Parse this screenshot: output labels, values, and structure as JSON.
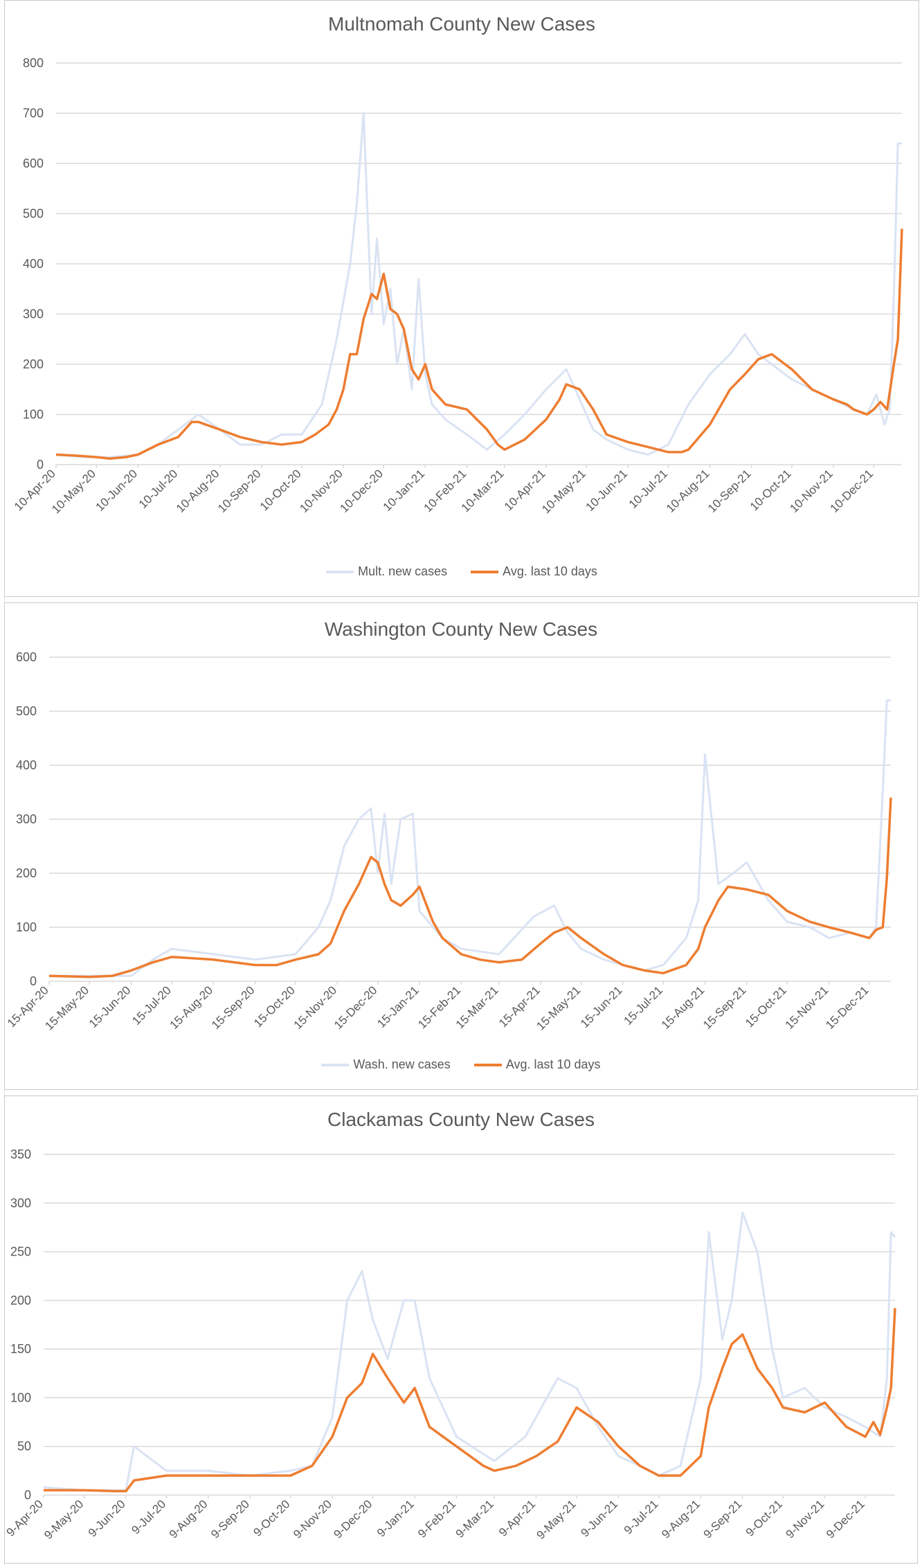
{
  "colors": {
    "daily": "#dae3f3",
    "avg": "#ed7d31",
    "grid": "#d9d9d9",
    "axis_text": "#595959"
  },
  "chart_data": [
    {
      "type": "line",
      "title": "Multnomah County New Cases",
      "ylim": [
        0,
        800
      ],
      "yticks": [
        0,
        100,
        200,
        300,
        400,
        500,
        600,
        700,
        800
      ],
      "x_range": [
        "2020-04-10",
        "2021-12-31"
      ],
      "xtick_labels": [
        "10-Apr-20",
        "10-May-20",
        "10-Jun-20",
        "10-Jul-20",
        "10-Aug-20",
        "10-Sep-20",
        "10-Oct-20",
        "10-Nov-20",
        "10-Dec-20",
        "10-Jan-21",
        "10-Feb-21",
        "10-Mar-21",
        "10-Apr-21",
        "10-May-21",
        "10-Jun-21",
        "10-Jul-21",
        "10-Aug-21",
        "10-Sep-21",
        "10-Oct-21",
        "10-Nov-21",
        "10-Dec-21"
      ],
      "xtick_dates": [
        "2020-04-10",
        "2020-05-10",
        "2020-06-10",
        "2020-07-10",
        "2020-08-10",
        "2020-09-10",
        "2020-10-10",
        "2020-11-10",
        "2020-12-10",
        "2021-01-10",
        "2021-02-10",
        "2021-03-10",
        "2021-04-10",
        "2021-05-10",
        "2021-06-10",
        "2021-07-10",
        "2021-08-10",
        "2021-09-10",
        "2021-10-10",
        "2021-11-10",
        "2021-12-10"
      ],
      "grid": true,
      "legend": "bottom",
      "series": [
        {
          "name": "Mult. new cases",
          "color": "#dae3f3",
          "x": [
            "2020-04-10",
            "2020-05-01",
            "2020-05-20",
            "2020-06-10",
            "2020-06-25",
            "2020-07-10",
            "2020-07-25",
            "2020-08-10",
            "2020-08-25",
            "2020-09-10",
            "2020-09-25",
            "2020-10-10",
            "2020-10-25",
            "2020-11-05",
            "2020-11-15",
            "2020-11-20",
            "2020-11-25",
            "2020-12-01",
            "2020-12-05",
            "2020-12-10",
            "2020-12-15",
            "2020-12-20",
            "2020-12-25",
            "2020-12-31",
            "2021-01-05",
            "2021-01-10",
            "2021-01-15",
            "2021-01-25",
            "2021-02-10",
            "2021-02-25",
            "2021-03-10",
            "2021-03-25",
            "2021-04-10",
            "2021-04-25",
            "2021-05-05",
            "2021-05-15",
            "2021-05-25",
            "2021-06-10",
            "2021-06-25",
            "2021-07-10",
            "2021-07-25",
            "2021-08-10",
            "2021-08-25",
            "2021-09-05",
            "2021-09-15",
            "2021-09-25",
            "2021-10-10",
            "2021-10-25",
            "2021-11-10",
            "2021-11-25",
            "2021-12-05",
            "2021-12-12",
            "2021-12-18",
            "2021-12-22",
            "2021-12-25",
            "2021-12-28",
            "2021-12-31"
          ],
          "values": [
            20,
            15,
            15,
            20,
            40,
            70,
            100,
            70,
            40,
            40,
            60,
            60,
            120,
            250,
            400,
            520,
            700,
            300,
            450,
            280,
            350,
            200,
            270,
            150,
            370,
            180,
            120,
            90,
            60,
            30,
            60,
            100,
            150,
            190,
            130,
            70,
            50,
            30,
            20,
            40,
            120,
            180,
            220,
            260,
            220,
            200,
            170,
            150,
            130,
            110,
            100,
            140,
            80,
            110,
            340,
            640,
            640
          ]
        },
        {
          "name": "Avg. last 10 days",
          "color": "#ed7d31",
          "x": [
            "2020-04-10",
            "2020-04-25",
            "2020-05-10",
            "2020-05-20",
            "2020-06-01",
            "2020-06-10",
            "2020-06-25",
            "2020-07-10",
            "2020-07-20",
            "2020-07-25",
            "2020-08-10",
            "2020-08-25",
            "2020-09-10",
            "2020-09-25",
            "2020-10-10",
            "2020-10-20",
            "2020-10-30",
            "2020-11-05",
            "2020-11-10",
            "2020-11-15",
            "2020-11-20",
            "2020-11-25",
            "2020-12-01",
            "2020-12-05",
            "2020-12-10",
            "2020-12-15",
            "2020-12-20",
            "2020-12-25",
            "2020-12-31",
            "2021-01-05",
            "2021-01-10",
            "2021-01-15",
            "2021-01-25",
            "2021-02-10",
            "2021-02-25",
            "2021-03-05",
            "2021-03-10",
            "2021-03-25",
            "2021-04-10",
            "2021-04-20",
            "2021-04-25",
            "2021-05-05",
            "2021-05-15",
            "2021-05-25",
            "2021-06-10",
            "2021-06-25",
            "2021-07-10",
            "2021-07-20",
            "2021-07-25",
            "2021-08-10",
            "2021-08-25",
            "2021-09-05",
            "2021-09-15",
            "2021-09-25",
            "2021-10-05",
            "2021-10-10",
            "2021-10-25",
            "2021-11-10",
            "2021-11-20",
            "2021-11-25",
            "2021-12-05",
            "2021-12-10",
            "2021-12-15",
            "2021-12-20",
            "2021-12-25",
            "2021-12-28",
            "2021-12-31"
          ],
          "values": [
            20,
            18,
            15,
            12,
            15,
            20,
            40,
            55,
            85,
            85,
            70,
            55,
            45,
            40,
            45,
            60,
            80,
            110,
            150,
            220,
            220,
            290,
            340,
            330,
            380,
            310,
            300,
            270,
            190,
            170,
            200,
            150,
            120,
            110,
            70,
            40,
            30,
            50,
            90,
            130,
            160,
            150,
            110,
            60,
            45,
            35,
            25,
            25,
            30,
            80,
            150,
            180,
            210,
            220,
            200,
            190,
            150,
            130,
            120,
            110,
            100,
            110,
            125,
            110,
            200,
            250,
            470
          ]
        }
      ]
    },
    {
      "type": "line",
      "title": "Washington County New Cases",
      "ylim": [
        0,
        600
      ],
      "yticks": [
        0,
        100,
        200,
        300,
        400,
        500,
        600
      ],
      "x_range": [
        "2020-04-15",
        "2021-12-31"
      ],
      "xtick_labels": [
        "15-Apr-20",
        "15-May-20",
        "15-Jun-20",
        "15-Jul-20",
        "15-Aug-20",
        "15-Sep-20",
        "15-Oct-20",
        "15-Nov-20",
        "15-Dec-20",
        "15-Jan-21",
        "15-Feb-21",
        "15-Mar-21",
        "15-Apr-21",
        "15-May-21",
        "15-Jun-21",
        "15-Jul-21",
        "15-Aug-21",
        "15-Sep-21",
        "15-Oct-21",
        "15-Nov-21",
        "15-Dec-21"
      ],
      "xtick_dates": [
        "2020-04-15",
        "2020-05-15",
        "2020-06-15",
        "2020-07-15",
        "2020-08-15",
        "2020-09-15",
        "2020-10-15",
        "2020-11-15",
        "2020-12-15",
        "2021-01-15",
        "2021-02-15",
        "2021-03-15",
        "2021-04-15",
        "2021-05-15",
        "2021-06-15",
        "2021-07-15",
        "2021-08-15",
        "2021-09-15",
        "2021-10-15",
        "2021-11-15",
        "2021-12-15"
      ],
      "grid": true,
      "legend": "bottom",
      "series": [
        {
          "name": "Wash. new cases",
          "color": "#dae3f3",
          "x": [
            "2020-04-15",
            "2020-05-15",
            "2020-06-15",
            "2020-07-01",
            "2020-07-15",
            "2020-08-15",
            "2020-09-15",
            "2020-10-15",
            "2020-11-01",
            "2020-11-10",
            "2020-11-20",
            "2020-12-01",
            "2020-12-10",
            "2020-12-15",
            "2020-12-20",
            "2020-12-25",
            "2021-01-01",
            "2021-01-10",
            "2021-01-15",
            "2021-02-01",
            "2021-02-15",
            "2021-03-15",
            "2021-04-10",
            "2021-04-25",
            "2021-05-05",
            "2021-05-15",
            "2021-06-01",
            "2021-06-15",
            "2021-07-01",
            "2021-07-15",
            "2021-08-01",
            "2021-08-10",
            "2021-08-15",
            "2021-08-25",
            "2021-09-05",
            "2021-09-15",
            "2021-10-01",
            "2021-10-15",
            "2021-11-01",
            "2021-11-15",
            "2021-12-01",
            "2021-12-15",
            "2021-12-20",
            "2021-12-25",
            "2021-12-28",
            "2021-12-31"
          ],
          "values": [
            10,
            10,
            10,
            40,
            60,
            50,
            40,
            50,
            100,
            150,
            250,
            300,
            320,
            200,
            310,
            180,
            300,
            310,
            130,
            80,
            60,
            50,
            120,
            140,
            90,
            60,
            40,
            30,
            20,
            30,
            80,
            150,
            420,
            180,
            200,
            220,
            150,
            110,
            100,
            80,
            90,
            80,
            100,
            350,
            520,
            520
          ]
        },
        {
          "name": "Avg. last 10 days",
          "color": "#ed7d31",
          "x": [
            "2020-04-15",
            "2020-05-15",
            "2020-06-01",
            "2020-06-15",
            "2020-07-01",
            "2020-07-15",
            "2020-08-15",
            "2020-09-15",
            "2020-10-01",
            "2020-10-15",
            "2020-11-01",
            "2020-11-10",
            "2020-11-20",
            "2020-12-01",
            "2020-12-10",
            "2020-12-15",
            "2020-12-20",
            "2020-12-25",
            "2021-01-01",
            "2021-01-10",
            "2021-01-15",
            "2021-01-25",
            "2021-02-01",
            "2021-02-15",
            "2021-03-01",
            "2021-03-15",
            "2021-04-01",
            "2021-04-15",
            "2021-04-25",
            "2021-05-05",
            "2021-05-15",
            "2021-06-01",
            "2021-06-15",
            "2021-07-01",
            "2021-07-15",
            "2021-08-01",
            "2021-08-10",
            "2021-08-15",
            "2021-08-25",
            "2021-09-01",
            "2021-09-15",
            "2021-10-01",
            "2021-10-15",
            "2021-11-01",
            "2021-11-15",
            "2021-12-01",
            "2021-12-15",
            "2021-12-20",
            "2021-12-25",
            "2021-12-28",
            "2021-12-31"
          ],
          "values": [
            10,
            8,
            10,
            20,
            35,
            45,
            40,
            30,
            30,
            40,
            50,
            70,
            130,
            180,
            230,
            220,
            180,
            150,
            140,
            160,
            175,
            110,
            80,
            50,
            40,
            35,
            40,
            70,
            90,
            100,
            80,
            50,
            30,
            20,
            15,
            30,
            60,
            100,
            150,
            175,
            170,
            160,
            130,
            110,
            100,
            90,
            80,
            95,
            100,
            190,
            340
          ]
        }
      ]
    },
    {
      "type": "line",
      "title": "Clackamas County New Cases",
      "ylim": [
        0,
        350
      ],
      "yticks": [
        0,
        50,
        100,
        150,
        200,
        250,
        300,
        350
      ],
      "x_range": [
        "2020-04-09",
        "2021-12-31"
      ],
      "xtick_labels": [
        "9-Apr-20",
        "9-May-20",
        "9-Jun-20",
        "9-Jul-20",
        "9-Aug-20",
        "9-Sep-20",
        "9-Oct-20",
        "9-Nov-20",
        "9-Dec-20",
        "9-Jan-21",
        "9-Feb-21",
        "9-Mar-21",
        "9-Apr-21",
        "9-May-21",
        "9-Jun-21",
        "9-Jul-21",
        "9-Aug-21",
        "9-Sep-21",
        "9-Oct-21",
        "9-Nov-21",
        "9-Dec-21"
      ],
      "xtick_dates": [
        "2020-04-09",
        "2020-05-09",
        "2020-06-09",
        "2020-07-09",
        "2020-08-09",
        "2020-09-09",
        "2020-10-09",
        "2020-11-09",
        "2020-12-09",
        "2021-01-09",
        "2021-02-09",
        "2021-03-09",
        "2021-04-09",
        "2021-05-09",
        "2021-06-09",
        "2021-07-09",
        "2021-08-09",
        "2021-09-09",
        "2021-10-09",
        "2021-11-09",
        "2021-12-09"
      ],
      "grid": true,
      "legend": "none",
      "series": [
        {
          "name": "",
          "color": "#dae3f3",
          "x": [
            "2020-04-09",
            "2020-05-09",
            "2020-06-09",
            "2020-06-15",
            "2020-07-09",
            "2020-08-09",
            "2020-09-09",
            "2020-10-09",
            "2020-10-25",
            "2020-11-09",
            "2020-11-20",
            "2020-12-01",
            "2020-12-09",
            "2020-12-20",
            "2021-01-01",
            "2021-01-09",
            "2021-01-20",
            "2021-02-09",
            "2021-03-09",
            "2021-04-01",
            "2021-04-09",
            "2021-04-25",
            "2021-05-09",
            "2021-05-25",
            "2021-06-09",
            "2021-06-25",
            "2021-07-09",
            "2021-07-25",
            "2021-08-09",
            "2021-08-15",
            "2021-08-25",
            "2021-09-01",
            "2021-09-09",
            "2021-09-20",
            "2021-10-01",
            "2021-10-09",
            "2021-10-25",
            "2021-11-09",
            "2021-11-25",
            "2021-12-09",
            "2021-12-20",
            "2021-12-25",
            "2021-12-28",
            "2021-12-31"
          ],
          "values": [
            8,
            5,
            5,
            50,
            25,
            25,
            20,
            25,
            30,
            80,
            200,
            230,
            180,
            140,
            200,
            200,
            120,
            60,
            35,
            60,
            80,
            120,
            110,
            70,
            40,
            30,
            20,
            30,
            120,
            270,
            160,
            200,
            290,
            250,
            150,
            100,
            110,
            90,
            80,
            70,
            60,
            120,
            270,
            265
          ]
        },
        {
          "name": "",
          "color": "#ed7d31",
          "x": [
            "2020-04-09",
            "2020-05-09",
            "2020-06-01",
            "2020-06-09",
            "2020-06-15",
            "2020-07-09",
            "2020-08-09",
            "2020-09-09",
            "2020-10-09",
            "2020-10-25",
            "2020-11-09",
            "2020-11-20",
            "2020-12-01",
            "2020-12-09",
            "2020-12-20",
            "2021-01-01",
            "2021-01-09",
            "2021-01-20",
            "2021-02-09",
            "2021-03-01",
            "2021-03-09",
            "2021-03-25",
            "2021-04-09",
            "2021-04-25",
            "2021-05-09",
            "2021-05-25",
            "2021-06-09",
            "2021-06-25",
            "2021-07-09",
            "2021-07-25",
            "2021-08-09",
            "2021-08-15",
            "2021-08-25",
            "2021-09-01",
            "2021-09-09",
            "2021-09-20",
            "2021-10-01",
            "2021-10-09",
            "2021-10-25",
            "2021-11-09",
            "2021-11-25",
            "2021-12-09",
            "2021-12-15",
            "2021-12-20",
            "2021-12-25",
            "2021-12-28",
            "2021-12-31"
          ],
          "values": [
            5,
            5,
            4,
            4,
            15,
            20,
            20,
            20,
            20,
            30,
            60,
            100,
            115,
            145,
            120,
            95,
            110,
            70,
            50,
            30,
            25,
            30,
            40,
            55,
            90,
            75,
            50,
            30,
            20,
            20,
            40,
            90,
            130,
            155,
            165,
            130,
            110,
            90,
            85,
            95,
            70,
            60,
            75,
            62,
            90,
            110,
            192
          ]
        }
      ]
    }
  ],
  "legends": [
    {
      "items": [
        "Mult. new cases",
        "Avg. last 10 days"
      ]
    },
    {
      "items": [
        "Wash. new cases",
        "Avg. last 10 days"
      ]
    }
  ]
}
